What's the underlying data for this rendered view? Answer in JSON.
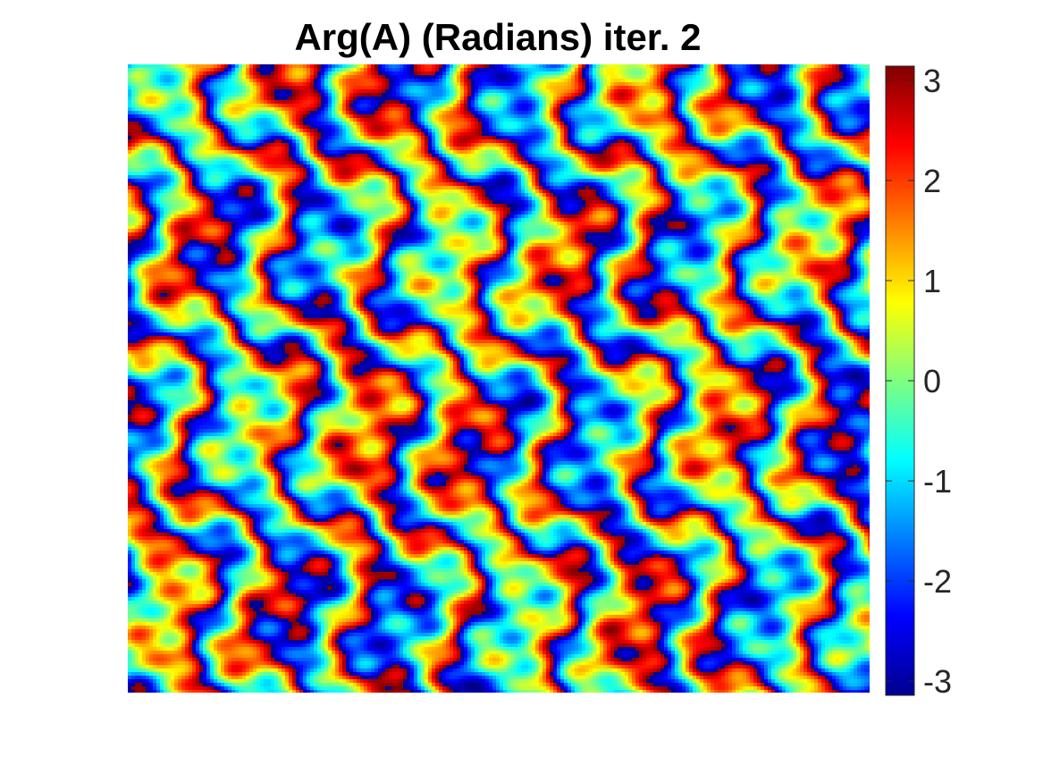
{
  "chart_data": {
    "type": "heatmap",
    "title": "Arg(A) (Radians) iter. 2",
    "xlabel": "",
    "ylabel": "",
    "colormap": "jet",
    "color_range": [
      -3.14159,
      3.14159
    ],
    "colorbar": {
      "ticks": [
        3,
        2,
        1,
        0,
        -1,
        -2,
        -3
      ],
      "tick_labels": [
        "3",
        "2",
        "1",
        "0",
        "-1",
        "-2",
        "-3"
      ]
    },
    "x_ticks_visible": false,
    "y_ticks_visible": false
  }
}
